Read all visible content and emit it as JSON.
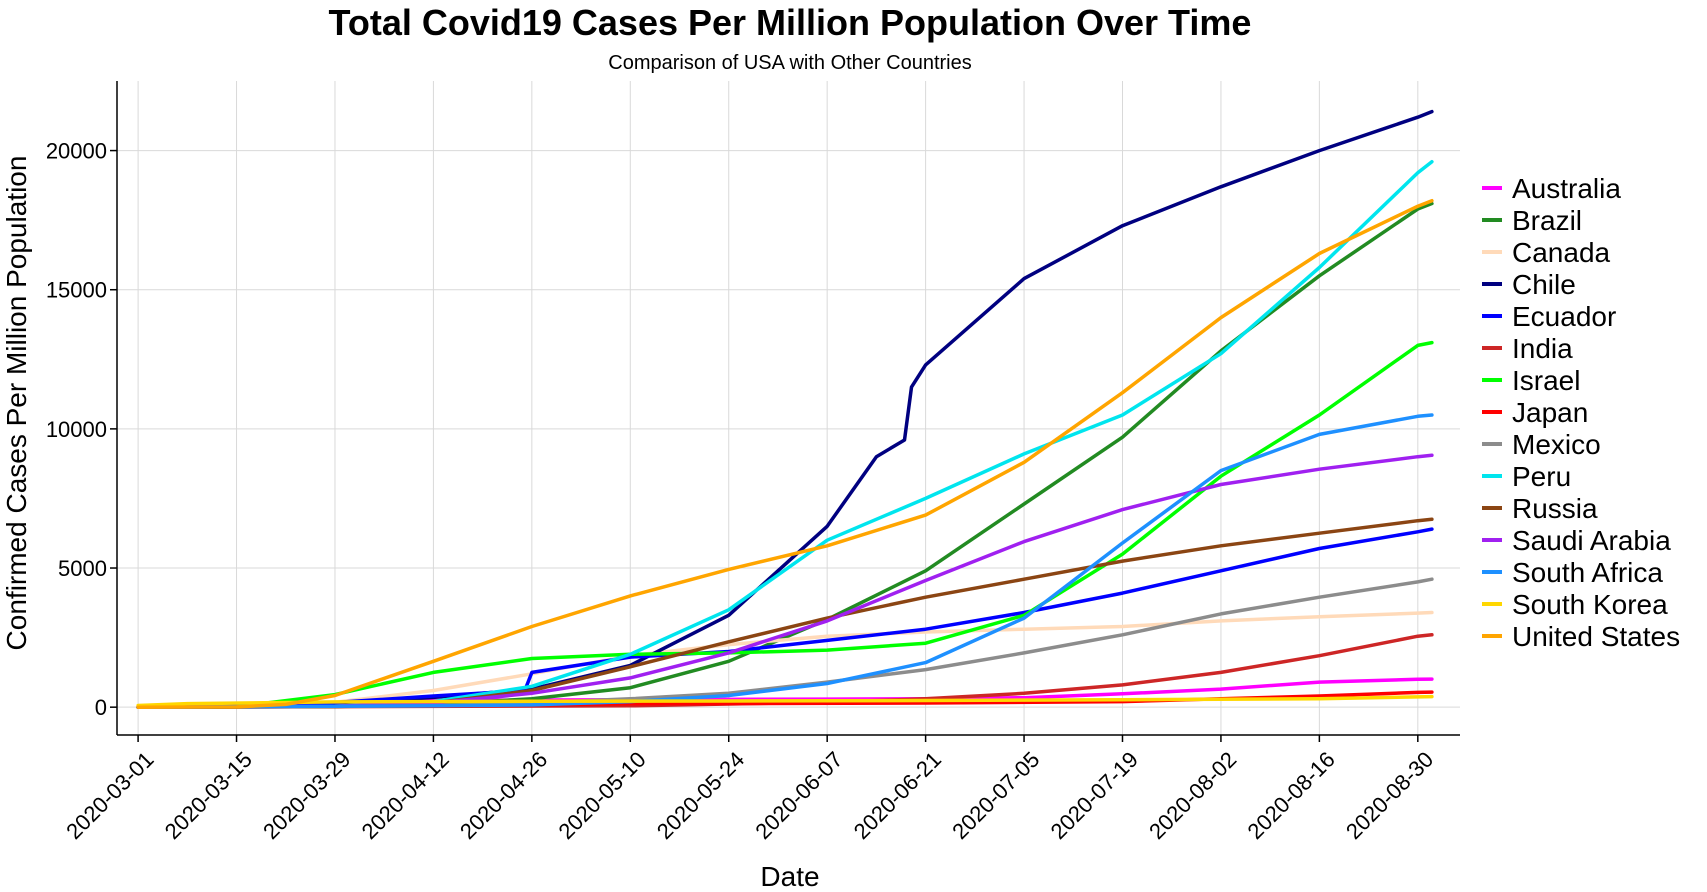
{
  "chart_data": {
    "type": "line",
    "title": "Total Covid19 Cases Per Million Population Over Time",
    "subtitle": "Comparison of USA with Other Countries",
    "xlabel": "Date",
    "ylabel": "Confirmed Cases Per Million Population",
    "x_axis_type": "date",
    "xlim": [
      "2020-02-27",
      "2020-09-05"
    ],
    "ylim": [
      -1000,
      22500
    ],
    "x_ticks": [
      "2020-03-01",
      "2020-03-15",
      "2020-03-29",
      "2020-04-12",
      "2020-04-26",
      "2020-05-10",
      "2020-05-24",
      "2020-06-07",
      "2020-06-21",
      "2020-07-05",
      "2020-07-19",
      "2020-08-02",
      "2020-08-16",
      "2020-08-30"
    ],
    "y_ticks": [
      0,
      5000,
      10000,
      15000,
      20000
    ],
    "y_tick_labels": [
      "0",
      "5000",
      "10000",
      "15000",
      "20000"
    ],
    "grid": true,
    "legend_position": "right",
    "series": [
      {
        "name": "Australia",
        "color": "#FF00FF",
        "points": [
          [
            "2020-03-01",
            0
          ],
          [
            "2020-03-20",
            30
          ],
          [
            "2020-04-10",
            240
          ],
          [
            "2020-05-10",
            270
          ],
          [
            "2020-06-07",
            290
          ],
          [
            "2020-06-21",
            300
          ],
          [
            "2020-07-05",
            340
          ],
          [
            "2020-07-19",
            480
          ],
          [
            "2020-08-02",
            650
          ],
          [
            "2020-08-16",
            900
          ],
          [
            "2020-08-30",
            1000
          ],
          [
            "2020-09-01",
            1010
          ]
        ]
      },
      {
        "name": "Brazil",
        "color": "#228B22",
        "points": [
          [
            "2020-03-01",
            0
          ],
          [
            "2020-03-29",
            20
          ],
          [
            "2020-04-12",
            100
          ],
          [
            "2020-04-26",
            300
          ],
          [
            "2020-05-10",
            700
          ],
          [
            "2020-05-24",
            1650
          ],
          [
            "2020-06-07",
            3150
          ],
          [
            "2020-06-21",
            4900
          ],
          [
            "2020-07-05",
            7300
          ],
          [
            "2020-07-19",
            9700
          ],
          [
            "2020-08-02",
            12800
          ],
          [
            "2020-08-16",
            15500
          ],
          [
            "2020-08-30",
            17900
          ],
          [
            "2020-09-01",
            18100
          ]
        ]
      },
      {
        "name": "Canada",
        "color": "#FFDAB9",
        "points": [
          [
            "2020-03-01",
            0
          ],
          [
            "2020-03-15",
            20
          ],
          [
            "2020-03-29",
            180
          ],
          [
            "2020-04-12",
            600
          ],
          [
            "2020-04-26",
            1200
          ],
          [
            "2020-05-10",
            1850
          ],
          [
            "2020-05-24",
            2250
          ],
          [
            "2020-06-07",
            2550
          ],
          [
            "2020-06-21",
            2700
          ],
          [
            "2020-07-05",
            2800
          ],
          [
            "2020-07-19",
            2900
          ],
          [
            "2020-08-02",
            3100
          ],
          [
            "2020-08-16",
            3250
          ],
          [
            "2020-08-30",
            3380
          ],
          [
            "2020-09-01",
            3400
          ]
        ]
      },
      {
        "name": "Chile",
        "color": "#000080",
        "points": [
          [
            "2020-03-01",
            0
          ],
          [
            "2020-03-15",
            20
          ],
          [
            "2020-03-29",
            100
          ],
          [
            "2020-04-12",
            350
          ],
          [
            "2020-04-26",
            650
          ],
          [
            "2020-05-10",
            1500
          ],
          [
            "2020-05-24",
            3300
          ],
          [
            "2020-06-07",
            6500
          ],
          [
            "2020-06-14",
            9000
          ],
          [
            "2020-06-18",
            9600
          ],
          [
            "2020-06-19",
            11500
          ],
          [
            "2020-06-21",
            12300
          ],
          [
            "2020-07-05",
            15400
          ],
          [
            "2020-07-19",
            17300
          ],
          [
            "2020-08-02",
            18700
          ],
          [
            "2020-08-16",
            20000
          ],
          [
            "2020-08-30",
            21200
          ],
          [
            "2020-09-01",
            21400
          ]
        ]
      },
      {
        "name": "Ecuador",
        "color": "#0000FF",
        "points": [
          [
            "2020-03-01",
            0
          ],
          [
            "2020-03-22",
            50
          ],
          [
            "2020-04-12",
            400
          ],
          [
            "2020-04-25",
            600
          ],
          [
            "2020-04-26",
            1250
          ],
          [
            "2020-05-10",
            1800
          ],
          [
            "2020-05-24",
            2000
          ],
          [
            "2020-06-07",
            2400
          ],
          [
            "2020-06-21",
            2800
          ],
          [
            "2020-07-05",
            3400
          ],
          [
            "2020-07-19",
            4100
          ],
          [
            "2020-08-02",
            4900
          ],
          [
            "2020-08-16",
            5700
          ],
          [
            "2020-08-30",
            6300
          ],
          [
            "2020-09-01",
            6400
          ]
        ]
      },
      {
        "name": "India",
        "color": "#CD2626",
        "points": [
          [
            "2020-03-01",
            0
          ],
          [
            "2020-05-10",
            50
          ],
          [
            "2020-06-07",
            180
          ],
          [
            "2020-06-21",
            300
          ],
          [
            "2020-07-05",
            500
          ],
          [
            "2020-07-19",
            800
          ],
          [
            "2020-08-02",
            1250
          ],
          [
            "2020-08-16",
            1850
          ],
          [
            "2020-08-30",
            2550
          ],
          [
            "2020-09-01",
            2600
          ]
        ]
      },
      {
        "name": "Israel",
        "color": "#00FF00",
        "points": [
          [
            "2020-03-01",
            0
          ],
          [
            "2020-03-15",
            20
          ],
          [
            "2020-03-29",
            450
          ],
          [
            "2020-04-12",
            1250
          ],
          [
            "2020-04-26",
            1750
          ],
          [
            "2020-05-10",
            1900
          ],
          [
            "2020-05-24",
            1950
          ],
          [
            "2020-06-07",
            2050
          ],
          [
            "2020-06-21",
            2300
          ],
          [
            "2020-07-05",
            3300
          ],
          [
            "2020-07-19",
            5500
          ],
          [
            "2020-08-02",
            8300
          ],
          [
            "2020-08-16",
            10500
          ],
          [
            "2020-08-30",
            13000
          ],
          [
            "2020-09-01",
            13100
          ]
        ]
      },
      {
        "name": "Japan",
        "color": "#FF0000",
        "points": [
          [
            "2020-03-01",
            0
          ],
          [
            "2020-04-12",
            50
          ],
          [
            "2020-05-10",
            120
          ],
          [
            "2020-06-21",
            150
          ],
          [
            "2020-07-19",
            200
          ],
          [
            "2020-08-02",
            300
          ],
          [
            "2020-08-16",
            400
          ],
          [
            "2020-08-30",
            530
          ],
          [
            "2020-09-01",
            540
          ]
        ]
      },
      {
        "name": "Mexico",
        "color": "#8C8C8C",
        "points": [
          [
            "2020-03-01",
            0
          ],
          [
            "2020-04-12",
            50
          ],
          [
            "2020-04-26",
            150
          ],
          [
            "2020-05-10",
            300
          ],
          [
            "2020-05-24",
            500
          ],
          [
            "2020-06-07",
            900
          ],
          [
            "2020-06-21",
            1350
          ],
          [
            "2020-07-05",
            1950
          ],
          [
            "2020-07-19",
            2600
          ],
          [
            "2020-08-02",
            3350
          ],
          [
            "2020-08-16",
            3950
          ],
          [
            "2020-08-30",
            4500
          ],
          [
            "2020-09-01",
            4600
          ]
        ]
      },
      {
        "name": "Peru",
        "color": "#00E5EE",
        "points": [
          [
            "2020-03-01",
            0
          ],
          [
            "2020-03-29",
            30
          ],
          [
            "2020-04-12",
            200
          ],
          [
            "2020-04-26",
            750
          ],
          [
            "2020-05-10",
            1900
          ],
          [
            "2020-05-24",
            3500
          ],
          [
            "2020-06-07",
            6000
          ],
          [
            "2020-06-21",
            7500
          ],
          [
            "2020-07-05",
            9100
          ],
          [
            "2020-07-19",
            10500
          ],
          [
            "2020-08-02",
            12700
          ],
          [
            "2020-08-16",
            15800
          ],
          [
            "2020-08-30",
            19200
          ],
          [
            "2020-09-01",
            19600
          ]
        ]
      },
      {
        "name": "Russia",
        "color": "#8B4513",
        "points": [
          [
            "2020-03-01",
            0
          ],
          [
            "2020-03-29",
            20
          ],
          [
            "2020-04-12",
            150
          ],
          [
            "2020-04-26",
            600
          ],
          [
            "2020-05-10",
            1450
          ],
          [
            "2020-05-24",
            2350
          ],
          [
            "2020-06-07",
            3200
          ],
          [
            "2020-06-21",
            3950
          ],
          [
            "2020-07-05",
            4600
          ],
          [
            "2020-07-19",
            5250
          ],
          [
            "2020-08-02",
            5800
          ],
          [
            "2020-08-16",
            6250
          ],
          [
            "2020-08-30",
            6700
          ],
          [
            "2020-09-01",
            6750
          ]
        ]
      },
      {
        "name": "Saudi Arabia",
        "color": "#A020F0",
        "points": [
          [
            "2020-03-01",
            0
          ],
          [
            "2020-03-29",
            40
          ],
          [
            "2020-04-12",
            150
          ],
          [
            "2020-04-26",
            500
          ],
          [
            "2020-05-10",
            1050
          ],
          [
            "2020-05-24",
            1950
          ],
          [
            "2020-06-07",
            3100
          ],
          [
            "2020-06-21",
            4550
          ],
          [
            "2020-07-05",
            5950
          ],
          [
            "2020-07-19",
            7100
          ],
          [
            "2020-08-02",
            8000
          ],
          [
            "2020-08-16",
            8550
          ],
          [
            "2020-08-30",
            9000
          ],
          [
            "2020-09-01",
            9050
          ]
        ]
      },
      {
        "name": "South Africa",
        "color": "#1E90FF",
        "points": [
          [
            "2020-03-01",
            0
          ],
          [
            "2020-04-12",
            50
          ],
          [
            "2020-04-26",
            80
          ],
          [
            "2020-05-10",
            200
          ],
          [
            "2020-05-24",
            420
          ],
          [
            "2020-06-07",
            850
          ],
          [
            "2020-06-21",
            1600
          ],
          [
            "2020-07-05",
            3200
          ],
          [
            "2020-07-19",
            5900
          ],
          [
            "2020-08-02",
            8500
          ],
          [
            "2020-08-16",
            9800
          ],
          [
            "2020-08-30",
            10450
          ],
          [
            "2020-09-01",
            10500
          ]
        ]
      },
      {
        "name": "South Korea",
        "color": "#FFD700",
        "points": [
          [
            "2020-03-01",
            60
          ],
          [
            "2020-03-08",
            130
          ],
          [
            "2020-03-29",
            190
          ],
          [
            "2020-04-26",
            210
          ],
          [
            "2020-05-24",
            220
          ],
          [
            "2020-06-21",
            240
          ],
          [
            "2020-07-19",
            270
          ],
          [
            "2020-08-16",
            300
          ],
          [
            "2020-08-30",
            370
          ],
          [
            "2020-09-01",
            380
          ]
        ]
      },
      {
        "name": "United States",
        "color": "#FFA500",
        "points": [
          [
            "2020-03-01",
            0
          ],
          [
            "2020-03-15",
            10
          ],
          [
            "2020-03-22",
            100
          ],
          [
            "2020-03-29",
            420
          ],
          [
            "2020-04-12",
            1650
          ],
          [
            "2020-04-26",
            2900
          ],
          [
            "2020-05-10",
            4000
          ],
          [
            "2020-05-24",
            4950
          ],
          [
            "2020-06-07",
            5800
          ],
          [
            "2020-06-21",
            6900
          ],
          [
            "2020-07-05",
            8800
          ],
          [
            "2020-07-19",
            11300
          ],
          [
            "2020-08-02",
            14000
          ],
          [
            "2020-08-16",
            16300
          ],
          [
            "2020-08-30",
            18000
          ],
          [
            "2020-09-01",
            18200
          ]
        ]
      }
    ]
  }
}
